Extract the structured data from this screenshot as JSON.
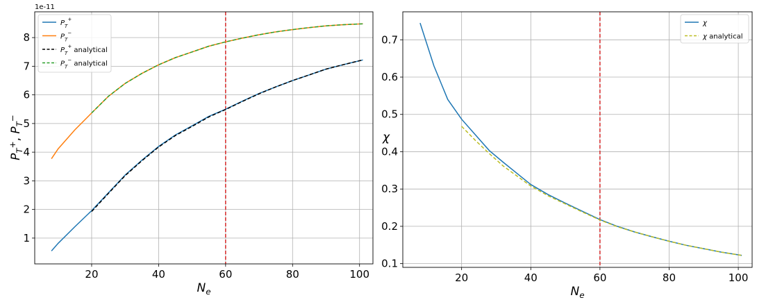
{
  "chart_data": [
    {
      "type": "line",
      "offset_text": "1e-11",
      "xlabel": "N_e",
      "ylabel": "P_T^+, P_T^-",
      "xlim": [
        3,
        104
      ],
      "ylim": [
        0.1,
        8.9
      ],
      "xticks": [
        20,
        40,
        60,
        80,
        100
      ],
      "yticks": [
        1,
        2,
        3,
        4,
        5,
        6,
        7,
        8
      ],
      "grid": true,
      "legend": "top-left",
      "vline": {
        "x": 60,
        "color": "#d62728",
        "style": "dashed"
      },
      "series": [
        {
          "name": "P_T^+",
          "color": "#1f77b4",
          "style": "solid",
          "x": [
            8,
            10,
            15,
            20,
            25,
            30,
            35,
            40,
            45,
            50,
            55,
            60,
            65,
            70,
            75,
            80,
            85,
            90,
            95,
            101
          ],
          "y": [
            0.55,
            0.82,
            1.4,
            1.96,
            2.58,
            3.2,
            3.72,
            4.2,
            4.6,
            4.92,
            5.25,
            5.5,
            5.78,
            6.05,
            6.28,
            6.5,
            6.7,
            6.9,
            7.05,
            7.22
          ]
        },
        {
          "name": "P_T^-",
          "color": "#ff7f0e",
          "style": "solid",
          "x": [
            8,
            10,
            15,
            20,
            25,
            30,
            35,
            40,
            45,
            50,
            55,
            60,
            65,
            70,
            75,
            80,
            85,
            90,
            95,
            101
          ],
          "y": [
            3.77,
            4.12,
            4.78,
            5.37,
            5.95,
            6.4,
            6.75,
            7.05,
            7.3,
            7.5,
            7.7,
            7.85,
            7.98,
            8.1,
            8.2,
            8.28,
            8.35,
            8.41,
            8.45,
            8.48
          ]
        },
        {
          "name": "P_T^+ analytical",
          "color": "#000000",
          "style": "dashed",
          "x": [
            20,
            25,
            30,
            35,
            40,
            45,
            50,
            55,
            60,
            65,
            70,
            75,
            80,
            85,
            90,
            95,
            101
          ],
          "y": [
            1.93,
            2.56,
            3.18,
            3.7,
            4.18,
            4.58,
            4.9,
            5.23,
            5.49,
            5.77,
            6.04,
            6.28,
            6.5,
            6.7,
            6.9,
            7.05,
            7.22
          ]
        },
        {
          "name": "P_T^- analytical",
          "color": "#2ca02c",
          "style": "dashed",
          "x": [
            20,
            25,
            30,
            35,
            40,
            45,
            50,
            55,
            60,
            65,
            70,
            75,
            80,
            85,
            90,
            95,
            101
          ],
          "y": [
            5.37,
            5.95,
            6.4,
            6.75,
            7.05,
            7.3,
            7.5,
            7.7,
            7.85,
            7.98,
            8.1,
            8.2,
            8.28,
            8.35,
            8.41,
            8.45,
            8.48
          ]
        }
      ]
    },
    {
      "type": "line",
      "xlabel": "N_e",
      "ylabel": "χ",
      "xlim": [
        3,
        104
      ],
      "ylim": [
        0.09,
        0.775
      ],
      "xticks": [
        20,
        40,
        60,
        80,
        100
      ],
      "yticks": [
        0.1,
        0.2,
        0.3,
        0.4,
        0.5,
        0.6,
        0.7
      ],
      "grid": true,
      "legend": "top-right",
      "vline": {
        "x": 60,
        "color": "#d62728",
        "style": "dashed"
      },
      "series": [
        {
          "name": "χ",
          "color": "#1f77b4",
          "style": "solid",
          "x": [
            8,
            12,
            16,
            20,
            24,
            28,
            32,
            36,
            40,
            45,
            50,
            55,
            60,
            65,
            70,
            75,
            80,
            85,
            90,
            95,
            101
          ],
          "y": [
            0.745,
            0.63,
            0.54,
            0.487,
            0.445,
            0.403,
            0.372,
            0.342,
            0.312,
            0.285,
            0.262,
            0.24,
            0.218,
            0.2,
            0.185,
            0.172,
            0.16,
            0.149,
            0.14,
            0.131,
            0.122
          ]
        },
        {
          "name": "χ analytical",
          "color": "#bcbd22",
          "style": "dashed",
          "x": [
            20,
            24,
            28,
            32,
            36,
            40,
            45,
            50,
            55,
            60,
            65,
            70,
            75,
            80,
            85,
            90,
            95,
            101
          ],
          "y": [
            0.468,
            0.43,
            0.395,
            0.362,
            0.335,
            0.308,
            0.282,
            0.26,
            0.238,
            0.217,
            0.199,
            0.185,
            0.172,
            0.16,
            0.149,
            0.14,
            0.131,
            0.122
          ]
        }
      ]
    }
  ]
}
